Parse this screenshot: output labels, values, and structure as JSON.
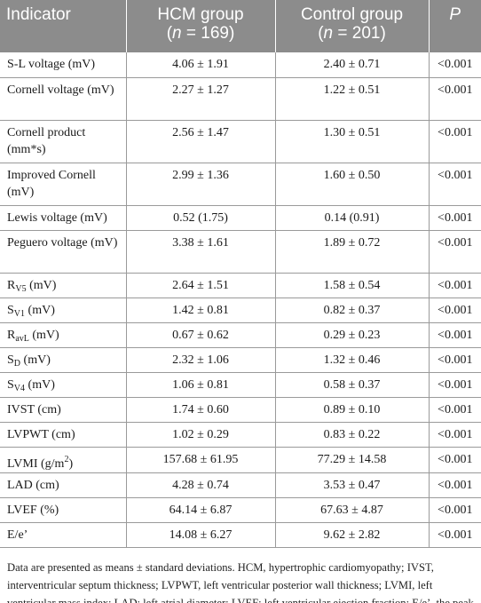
{
  "headers": {
    "indicator": "Indicator",
    "hcm_line1": "HCM group",
    "hcm_line2_prefix": "(",
    "hcm_n": "n",
    "hcm_line2_value": " = 169)",
    "control_line1": "Control group",
    "control_line2_prefix": "(",
    "control_n": "n",
    "control_line2_value": " = 201)",
    "p": "P"
  },
  "rows": [
    {
      "label": "S-L voltage (mV)",
      "hcm": "4.06 ± 1.91",
      "control": "2.40 ± 0.71",
      "p": "<0.001"
    },
    {
      "label": "Cornell voltage (mV)",
      "hcm": "2.27 ± 1.27",
      "control": "1.22 ± 0.51",
      "p": "<0.001"
    },
    {
      "label": "Cornell product (mm*s)",
      "hcm": "2.56 ± 1.47",
      "control": "1.30 ± 0.51",
      "p": "<0.001"
    },
    {
      "label": "Improved Cornell (mV)",
      "hcm": "2.99 ± 1.36",
      "control": "1.60 ± 0.50",
      "p": "<0.001"
    },
    {
      "label": "Lewis voltage (mV)",
      "hcm": "0.52 (1.75)",
      "control": "0.14 (0.91)",
      "p": "<0.001"
    },
    {
      "label": "Peguero voltage (mV)",
      "hcm": "3.38 ± 1.61",
      "control": "1.89 ± 0.72",
      "p": "<0.001"
    },
    {
      "label_main": "R",
      "label_sub": "V5",
      "label_tail": " (mV)",
      "hcm": "2.64 ± 1.51",
      "control": "1.58 ± 0.54",
      "p": "<0.001"
    },
    {
      "label_main": "S",
      "label_sub": "V1",
      "label_tail": " (mV)",
      "hcm": "1.42 ± 0.81",
      "control": "0.82 ± 0.37",
      "p": "<0.001"
    },
    {
      "label_main": "R",
      "label_sub": "avL",
      "label_tail": " (mV)",
      "hcm": "0.67 ± 0.62",
      "control": "0.29 ± 0.23",
      "p": "<0.001"
    },
    {
      "label_main": "S",
      "label_sub": "D",
      "label_tail": " (mV)",
      "hcm": "2.32 ± 1.06",
      "control": "1.32 ± 0.46",
      "p": "<0.001"
    },
    {
      "label_main": "S",
      "label_sub": "V4",
      "label_tail": " (mV)",
      "hcm": "1.06 ± 0.81",
      "control": "0.58 ± 0.37",
      "p": "<0.001"
    },
    {
      "label": "IVST (cm)",
      "hcm": "1.74 ± 0.60",
      "control": "0.89 ± 0.10",
      "p": "<0.001"
    },
    {
      "label": "LVPWT (cm)",
      "hcm": "1.02 ± 0.29",
      "control": "0.83 ± 0.22",
      "p": "<0.001"
    },
    {
      "label_main": "LVMI (g/m",
      "label_sup": "2",
      "label_tail": ")",
      "hcm": "157.68 ± 61.95",
      "control": "77.29 ± 14.58",
      "p": "<0.001"
    },
    {
      "label": "LAD (cm)",
      "hcm": "4.28 ± 0.74",
      "control": "3.53 ± 0.47",
      "p": "<0.001"
    },
    {
      "label": "LVEF (%)",
      "hcm": "64.14 ± 6.87",
      "control": "67.63 ± 4.87",
      "p": "<0.001"
    },
    {
      "label": "E/e’",
      "hcm": "14.08 ± 6.27",
      "control": "9.62 ± 2.82",
      "p": "<0.001"
    }
  ],
  "footnote": "Data are presented as means ± standard deviations. HCM, hypertrophic cardiomyopathy; IVST, interventricular septum thickness; LVPWT, left ventricular posterior wall thickness; LVMI, left ventricular mass index; LAD: left atrial diameter; LVEF: left ventricular ejection fraction; E/e’, the peak of early diastolic transmitral inflow velocity/peak of early diastolic mitral annulus velocity."
}
